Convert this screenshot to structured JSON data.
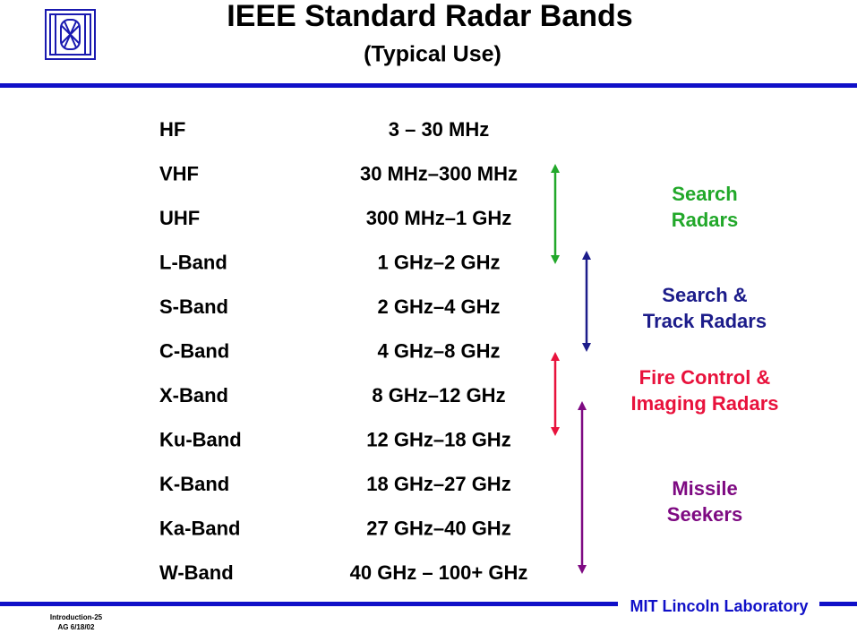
{
  "header": {
    "title": "IEEE Standard Radar Bands",
    "subtitle": "(Typical Use)"
  },
  "table": {
    "rows": [
      [
        "HF",
        "3 – 30 MHz"
      ],
      [
        "VHF",
        "30 MHz–300 MHz"
      ],
      [
        "UHF",
        "300 MHz–1 GHz"
      ],
      [
        "L-Band",
        "1 GHz–2 GHz"
      ],
      [
        "S-Band",
        "2 GHz–4 GHz"
      ],
      [
        "C-Band",
        "4 GHz–8 GHz"
      ],
      [
        "X-Band",
        "8 GHz–12 GHz"
      ],
      [
        "Ku-Band",
        "12 GHz–18 GHz"
      ],
      [
        "K-Band",
        "18 GHz–27 GHz"
      ],
      [
        "Ka-Band",
        "27 GHz–40 GHz"
      ],
      [
        "W-Band",
        "40 GHz – 100+ GHz"
      ]
    ]
  },
  "groups": [
    {
      "lines": [
        "Search",
        "Radars"
      ],
      "color": "#22a82a"
    },
    {
      "lines": [
        "Search &",
        "Track Radars"
      ],
      "color": "#1c1c8a"
    },
    {
      "lines": [
        "Fire Control &",
        "Imaging Radars"
      ],
      "color": "#e8123c"
    },
    {
      "lines": [
        "Missile",
        "Seekers"
      ],
      "color": "#7e0a82"
    }
  ],
  "footer": {
    "lab": "MIT Lincoln Laboratory",
    "notes": [
      "Introduction-25",
      "AG 6/18/02"
    ]
  }
}
